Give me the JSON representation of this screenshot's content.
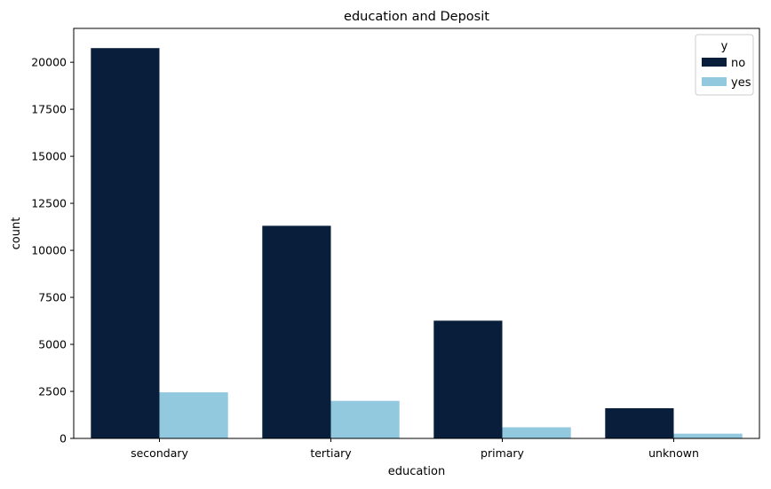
{
  "chart_data": {
    "type": "bar",
    "title": "education and Deposit",
    "xlabel": "education",
    "ylabel": "count",
    "categories": [
      "secondary",
      "tertiary",
      "primary",
      "unknown"
    ],
    "series": [
      {
        "name": "no",
        "color": "#091e3a",
        "values": [
          20752,
          11305,
          6260,
          1605
        ]
      },
      {
        "name": "yes",
        "color": "#92c9df",
        "values": [
          2450,
          1996,
          591,
          252
        ]
      }
    ],
    "ylim": [
      0,
      21800
    ],
    "yticks": [
      0,
      2500,
      5000,
      7500,
      10000,
      12500,
      15000,
      17500,
      20000
    ],
    "yticklabels": [
      "0",
      "2500",
      "5000",
      "7500",
      "10000",
      "12500",
      "15000",
      "17500",
      "20000"
    ],
    "grid": false,
    "legend": {
      "title": "y",
      "placement": "top-right",
      "entries": [
        "no",
        "yes"
      ]
    }
  }
}
